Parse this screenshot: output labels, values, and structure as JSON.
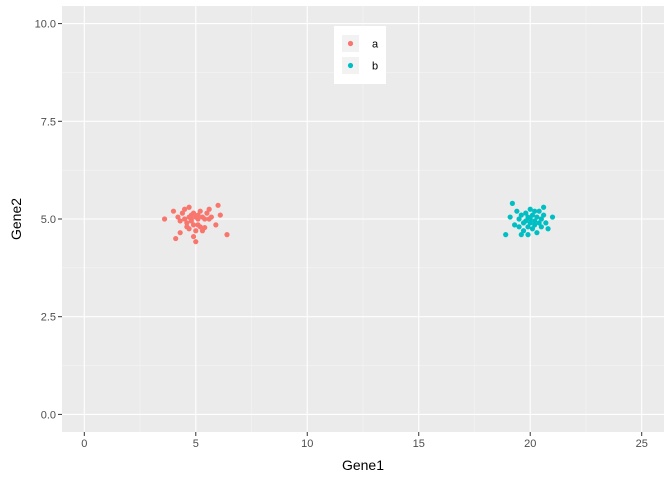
{
  "chart_data": {
    "type": "scatter",
    "title": "",
    "xlabel": "Gene1",
    "ylabel": "Gene2",
    "xlim": [
      -1.0,
      26.0
    ],
    "ylim": [
      -0.45,
      10.45
    ],
    "xticks": [
      0,
      5,
      10,
      15,
      20,
      25
    ],
    "xtick_labels": [
      "0",
      "5",
      "10",
      "15",
      "20",
      "25"
    ],
    "yticks": [
      0.0,
      2.5,
      5.0,
      7.5,
      10.0
    ],
    "ytick_labels": [
      "0.0",
      "2.5",
      "5.0",
      "7.5",
      "10.0"
    ],
    "grid": true,
    "legend_position": "top-center",
    "colors": {
      "panel_background": "#ebebeb",
      "grid_major": "#ffffff",
      "grid_minor": "#f5f5f5",
      "tick_mark": "#333333"
    },
    "series": [
      {
        "name": "a",
        "color": "#f8766d",
        "points": [
          [
            3.6,
            5.0
          ],
          [
            4.0,
            5.2
          ],
          [
            4.1,
            4.5
          ],
          [
            4.2,
            5.05
          ],
          [
            4.3,
            4.95
          ],
          [
            4.3,
            4.65
          ],
          [
            4.4,
            5.15
          ],
          [
            4.5,
            5.25
          ],
          [
            4.5,
            5.0
          ],
          [
            4.6,
            4.8
          ],
          [
            4.6,
            4.9
          ],
          [
            4.7,
            5.3
          ],
          [
            4.7,
            5.05
          ],
          [
            4.7,
            4.75
          ],
          [
            4.8,
            5.1
          ],
          [
            4.8,
            5.0
          ],
          [
            4.8,
            4.95
          ],
          [
            4.9,
            4.85
          ],
          [
            4.9,
            5.15
          ],
          [
            4.9,
            4.55
          ],
          [
            5.0,
            5.05
          ],
          [
            5.0,
            4.42
          ],
          [
            5.0,
            4.7
          ],
          [
            5.1,
            5.1
          ],
          [
            5.1,
            5.0
          ],
          [
            5.1,
            4.85
          ],
          [
            5.2,
            5.2
          ],
          [
            5.2,
            4.8
          ],
          [
            5.3,
            5.05
          ],
          [
            5.3,
            4.7
          ],
          [
            5.4,
            5.0
          ],
          [
            5.4,
            4.78
          ],
          [
            5.5,
            5.15
          ],
          [
            5.6,
            5.25
          ],
          [
            5.6,
            5.0
          ],
          [
            5.7,
            5.05
          ],
          [
            5.9,
            4.85
          ],
          [
            6.0,
            5.35
          ],
          [
            6.1,
            5.1
          ],
          [
            6.4,
            4.6
          ]
        ]
      },
      {
        "name": "b",
        "color": "#00bfc4",
        "points": [
          [
            18.9,
            4.6
          ],
          [
            19.1,
            5.05
          ],
          [
            19.2,
            5.4
          ],
          [
            19.3,
            4.85
          ],
          [
            19.4,
            5.2
          ],
          [
            19.5,
            5.0
          ],
          [
            19.6,
            4.6
          ],
          [
            19.6,
            5.1
          ],
          [
            19.7,
            4.9
          ],
          [
            19.7,
            4.7
          ],
          [
            19.8,
            5.15
          ],
          [
            19.8,
            4.95
          ],
          [
            19.9,
            5.05
          ],
          [
            19.9,
            4.8
          ],
          [
            19.9,
            4.6
          ],
          [
            20.0,
            5.25
          ],
          [
            20.0,
            5.0
          ],
          [
            20.0,
            4.9
          ],
          [
            20.1,
            4.75
          ],
          [
            20.1,
            5.1
          ],
          [
            20.2,
            4.95
          ],
          [
            20.2,
            5.2
          ],
          [
            20.2,
            4.85
          ],
          [
            20.3,
            5.05
          ],
          [
            20.3,
            4.65
          ],
          [
            20.4,
            4.9
          ],
          [
            20.4,
            5.2
          ],
          [
            20.5,
            5.0
          ],
          [
            20.5,
            4.8
          ],
          [
            20.6,
            5.1
          ],
          [
            20.6,
            5.3
          ],
          [
            20.7,
            4.9
          ],
          [
            20.8,
            4.75
          ],
          [
            21.0,
            5.05
          ],
          [
            19.5,
            4.8
          ]
        ]
      }
    ]
  }
}
